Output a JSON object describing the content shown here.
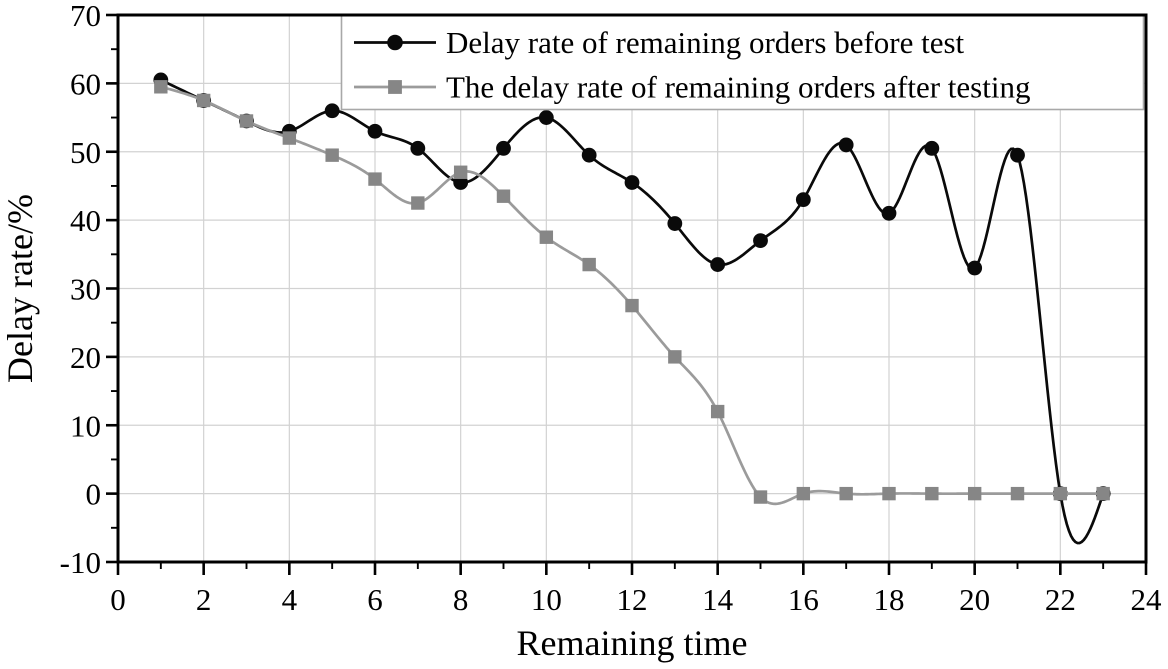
{
  "chart_data": {
    "type": "line",
    "style": "smooth-spline",
    "x": [
      1,
      2,
      3,
      4,
      5,
      6,
      7,
      8,
      9,
      10,
      11,
      12,
      13,
      14,
      15,
      16,
      17,
      18,
      19,
      20,
      21,
      22,
      23
    ],
    "series": [
      {
        "key": "before-test",
        "name": "Delay rate of remaining orders before test",
        "marker": "circle",
        "line_color": "#0a0a0a",
        "marker_color": "#0a0a0a",
        "values": [
          60.5,
          57.5,
          54.5,
          53,
          56,
          53,
          50.5,
          45.5,
          50.5,
          55,
          49.5,
          45.5,
          39.5,
          33.5,
          37,
          43,
          51,
          41,
          50.5,
          33,
          49.5,
          0,
          0
        ]
      },
      {
        "key": "after-testing",
        "name": "The delay rate of remaining orders after testing",
        "marker": "square",
        "line_color": "#9b9b9b",
        "marker_color": "#868686",
        "values": [
          59.5,
          57.5,
          54.5,
          52,
          49.5,
          46,
          42.5,
          47,
          43.5,
          37.5,
          33.5,
          27.5,
          20,
          12,
          -0.5,
          0,
          0,
          0,
          0,
          0,
          0,
          0,
          0
        ]
      }
    ],
    "xlabel": "Remaining time",
    "ylabel": "Delay rate/%",
    "xlim": [
      0,
      24
    ],
    "ylim": [
      -10,
      70
    ],
    "x_major_ticks": [
      0,
      2,
      4,
      6,
      8,
      10,
      12,
      14,
      16,
      18,
      20,
      22,
      24
    ],
    "x_minor_ticks": [
      1,
      3,
      5,
      7,
      9,
      11,
      13,
      15,
      17,
      19,
      21,
      23
    ],
    "y_major_ticks": [
      -10,
      0,
      10,
      20,
      30,
      40,
      50,
      60,
      70
    ],
    "y_minor_ticks": [
      -5,
      5,
      15,
      25,
      35,
      45,
      55,
      65
    ],
    "grid": true,
    "legend_position": "top-right",
    "colors": {
      "background": "#ffffff",
      "grid": "#d2d2d2",
      "axis": "#000000",
      "legend_border": "#a8a8a8",
      "legend_background": "#ffffff"
    }
  }
}
